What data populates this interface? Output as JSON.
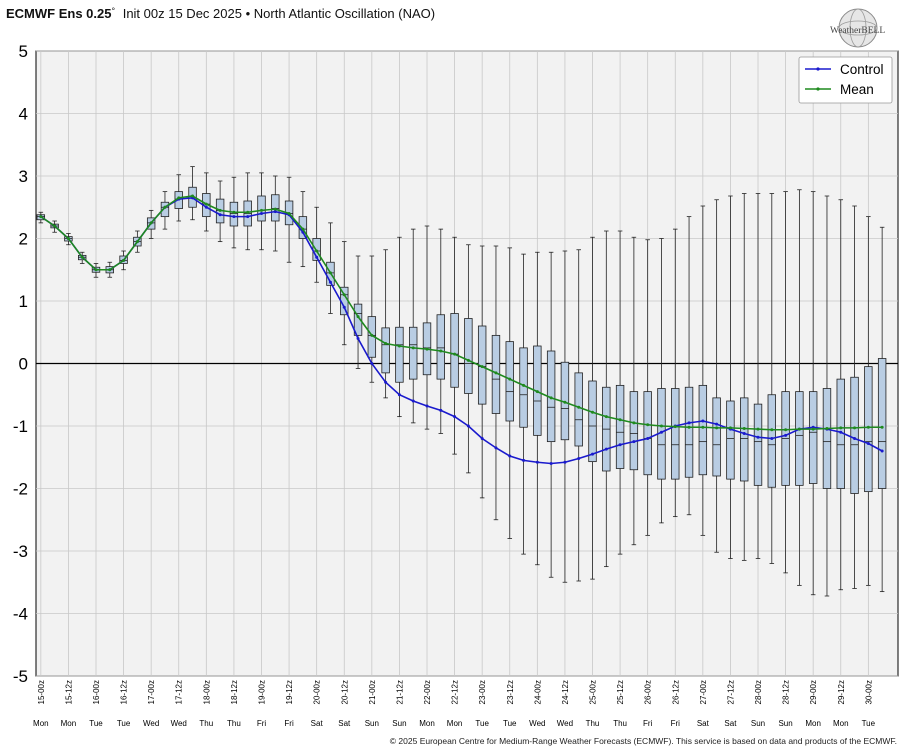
{
  "header": {
    "model": "ECMWF Ens 0.25",
    "degree": "°",
    "init": "Init 00z 15 Dec 2025",
    "bullet": "•",
    "index_name": "North Atlantic Oscillation (NAO)"
  },
  "logo": {
    "text": "WeatherBELL",
    "icon": "globe-logo-icon"
  },
  "copyright": "© 2025 European Centre for Medium-Range Weather Forecasts (ECMWF). This service is based on data and products of the ECMWF.",
  "colors": {
    "control": "#1a1acd",
    "mean": "#1f8a1f",
    "box_fill": "#b9cde3",
    "plot_bg": "#f2f2f2"
  },
  "chart_data": {
    "type": "box",
    "ylim": [
      -5,
      5
    ],
    "yticks": [
      5,
      4,
      3,
      2,
      1,
      0,
      -1,
      -2,
      -3,
      -4,
      -5
    ],
    "grid": true,
    "legend_position": "top-right",
    "time_labels": [
      "15-00z",
      "15-12z",
      "16-00z",
      "16-12z",
      "17-00z",
      "17-12z",
      "18-00z",
      "18-12z",
      "19-00z",
      "19-12z",
      "20-00z",
      "20-12z",
      "21-00z",
      "21-12z",
      "22-00z",
      "22-12z",
      "23-00z",
      "23-12z",
      "24-00z",
      "24-12z",
      "25-00z",
      "25-12z",
      "26-00z",
      "26-12z",
      "27-00z",
      "27-12z",
      "28-00z",
      "28-12z",
      "29-00z",
      "29-12z",
      "30-00z"
    ],
    "day_labels": [
      "Mon",
      "Mon",
      "Tue",
      "Tue",
      "Wed",
      "Wed",
      "Thu",
      "Thu",
      "Fri",
      "Fri",
      "Sat",
      "Sat",
      "Sun",
      "Sun",
      "Mon",
      "Mon",
      "Tue",
      "Tue",
      "Wed",
      "Wed",
      "Thu",
      "Thu",
      "Fri",
      "Fri",
      "Sat",
      "Sat",
      "Sun",
      "Sun",
      "Mon",
      "Mon",
      "Tue"
    ],
    "series": [
      {
        "name": "Control",
        "values": [
          2.35,
          2.2,
          2.0,
          1.7,
          1.5,
          1.5,
          1.65,
          1.95,
          2.25,
          2.5,
          2.63,
          2.65,
          2.5,
          2.38,
          2.35,
          2.35,
          2.4,
          2.43,
          2.38,
          2.1,
          1.7,
          1.3,
          0.9,
          0.4,
          0.0,
          -0.3,
          -0.5,
          -0.6,
          -0.68,
          -0.75,
          -0.85,
          -1.0,
          -1.2,
          -1.35,
          -1.48,
          -1.55,
          -1.58,
          -1.6,
          -1.58,
          -1.52,
          -1.45,
          -1.37,
          -1.3,
          -1.25,
          -1.2,
          -1.1,
          -1.0,
          -0.95,
          -0.92,
          -0.97,
          -1.05,
          -1.12,
          -1.18,
          -1.2,
          -1.15,
          -1.05,
          -1.02,
          -1.05,
          -1.1,
          -1.2,
          -1.28,
          -1.4
        ]
      },
      {
        "name": "Mean",
        "values": [
          2.35,
          2.2,
          2.0,
          1.7,
          1.5,
          1.5,
          1.65,
          1.95,
          2.25,
          2.5,
          2.65,
          2.68,
          2.55,
          2.45,
          2.42,
          2.42,
          2.45,
          2.47,
          2.4,
          2.15,
          1.8,
          1.45,
          1.1,
          0.75,
          0.45,
          0.32,
          0.28,
          0.25,
          0.23,
          0.2,
          0.15,
          0.05,
          -0.05,
          -0.15,
          -0.25,
          -0.35,
          -0.45,
          -0.55,
          -0.62,
          -0.7,
          -0.78,
          -0.85,
          -0.9,
          -0.95,
          -0.98,
          -1.0,
          -1.01,
          -1.02,
          -1.02,
          -1.03,
          -1.03,
          -1.04,
          -1.05,
          -1.06,
          -1.06,
          -1.05,
          -1.05,
          -1.04,
          -1.03,
          -1.03,
          -1.02,
          -1.02
        ]
      }
    ],
    "boxes": [
      {
        "min": 2.25,
        "q1": 2.3,
        "median": 2.35,
        "q3": 2.38,
        "max": 2.42
      },
      {
        "min": 2.1,
        "q1": 2.17,
        "median": 2.2,
        "q3": 2.23,
        "max": 2.28
      },
      {
        "min": 1.9,
        "q1": 1.96,
        "median": 2.0,
        "q3": 2.03,
        "max": 2.08
      },
      {
        "min": 1.6,
        "q1": 1.66,
        "median": 1.7,
        "q3": 1.73,
        "max": 1.78
      },
      {
        "min": 1.38,
        "q1": 1.46,
        "median": 1.5,
        "q3": 1.54,
        "max": 1.6
      },
      {
        "min": 1.38,
        "q1": 1.45,
        "median": 1.5,
        "q3": 1.55,
        "max": 1.62
      },
      {
        "min": 1.5,
        "q1": 1.6,
        "median": 1.65,
        "q3": 1.72,
        "max": 1.8
      },
      {
        "min": 1.78,
        "q1": 1.88,
        "median": 1.95,
        "q3": 2.02,
        "max": 2.12
      },
      {
        "min": 2.0,
        "q1": 2.15,
        "median": 2.25,
        "q3": 2.33,
        "max": 2.45
      },
      {
        "min": 2.15,
        "q1": 2.35,
        "median": 2.5,
        "q3": 2.58,
        "max": 2.75
      },
      {
        "min": 2.28,
        "q1": 2.48,
        "median": 2.63,
        "q3": 2.75,
        "max": 3.02
      },
      {
        "min": 2.3,
        "q1": 2.5,
        "median": 2.65,
        "q3": 2.82,
        "max": 3.15
      },
      {
        "min": 2.12,
        "q1": 2.35,
        "median": 2.55,
        "q3": 2.72,
        "max": 3.05
      },
      {
        "min": 1.95,
        "q1": 2.25,
        "median": 2.45,
        "q3": 2.63,
        "max": 2.92
      },
      {
        "min": 1.85,
        "q1": 2.2,
        "median": 2.4,
        "q3": 2.58,
        "max": 2.98
      },
      {
        "min": 1.82,
        "q1": 2.2,
        "median": 2.4,
        "q3": 2.6,
        "max": 3.05
      },
      {
        "min": 1.82,
        "q1": 2.28,
        "median": 2.45,
        "q3": 2.68,
        "max": 3.05
      },
      {
        "min": 1.8,
        "q1": 2.28,
        "median": 2.48,
        "q3": 2.7,
        "max": 3.0
      },
      {
        "min": 1.62,
        "q1": 2.22,
        "median": 2.4,
        "q3": 2.6,
        "max": 2.98
      },
      {
        "min": 1.55,
        "q1": 2.0,
        "median": 2.15,
        "q3": 2.35,
        "max": 2.75
      },
      {
        "min": 1.3,
        "q1": 1.65,
        "median": 1.8,
        "q3": 2.0,
        "max": 2.5
      },
      {
        "min": 0.8,
        "q1": 1.25,
        "median": 1.45,
        "q3": 1.62,
        "max": 2.25
      },
      {
        "min": 0.3,
        "q1": 0.78,
        "median": 1.1,
        "q3": 1.22,
        "max": 1.95
      },
      {
        "min": -0.08,
        "q1": 0.45,
        "median": 0.8,
        "q3": 0.95,
        "max": 1.72
      },
      {
        "min": -0.3,
        "q1": 0.1,
        "median": 0.45,
        "q3": 0.75,
        "max": 1.72
      },
      {
        "min": -0.55,
        "q1": -0.15,
        "median": 0.3,
        "q3": 0.57,
        "max": 1.82
      },
      {
        "min": -0.85,
        "q1": -0.3,
        "median": 0.3,
        "q3": 0.58,
        "max": 2.02
      },
      {
        "min": -0.95,
        "q1": -0.25,
        "median": 0.3,
        "q3": 0.58,
        "max": 2.15
      },
      {
        "min": -1.05,
        "q1": -0.18,
        "median": 0.25,
        "q3": 0.65,
        "max": 2.2
      },
      {
        "min": -1.12,
        "q1": -0.25,
        "median": 0.25,
        "q3": 0.78,
        "max": 2.15
      },
      {
        "min": -1.45,
        "q1": -0.38,
        "median": 0.15,
        "q3": 0.8,
        "max": 2.02
      },
      {
        "min": -1.75,
        "q1": -0.48,
        "median": 0.0,
        "q3": 0.72,
        "max": 1.9
      },
      {
        "min": -2.15,
        "q1": -0.65,
        "median": -0.05,
        "q3": 0.6,
        "max": 1.88
      },
      {
        "min": -2.5,
        "q1": -0.8,
        "median": -0.25,
        "q3": 0.45,
        "max": 1.88
      },
      {
        "min": -2.8,
        "q1": -0.92,
        "median": -0.45,
        "q3": 0.35,
        "max": 1.85
      },
      {
        "min": -3.05,
        "q1": -1.02,
        "median": -0.5,
        "q3": 0.25,
        "max": 1.75
      },
      {
        "min": -3.22,
        "q1": -1.15,
        "median": -0.6,
        "q3": 0.28,
        "max": 1.78
      },
      {
        "min": -3.42,
        "q1": -1.25,
        "median": -0.7,
        "q3": 0.2,
        "max": 1.78
      },
      {
        "min": -3.5,
        "q1": -1.22,
        "median": -0.72,
        "q3": 0.02,
        "max": 1.8
      },
      {
        "min": -3.48,
        "q1": -1.32,
        "median": -0.9,
        "q3": -0.15,
        "max": 1.82
      },
      {
        "min": -3.45,
        "q1": -1.57,
        "median": -1.0,
        "q3": -0.28,
        "max": 2.02
      },
      {
        "min": -3.25,
        "q1": -1.72,
        "median": -1.05,
        "q3": -0.38,
        "max": 2.12
      },
      {
        "min": -3.05,
        "q1": -1.68,
        "median": -1.1,
        "q3": -0.35,
        "max": 2.12
      },
      {
        "min": -2.9,
        "q1": -1.7,
        "median": -1.12,
        "q3": -0.45,
        "max": 2.02
      },
      {
        "min": -2.75,
        "q1": -1.78,
        "median": -1.2,
        "q3": -0.45,
        "max": 1.98
      },
      {
        "min": -2.55,
        "q1": -1.85,
        "median": -1.3,
        "q3": -0.4,
        "max": 2.0
      },
      {
        "min": -2.45,
        "q1": -1.85,
        "median": -1.3,
        "q3": -0.4,
        "max": 2.15
      },
      {
        "min": -2.42,
        "q1": -1.82,
        "median": -1.3,
        "q3": -0.38,
        "max": 2.35
      },
      {
        "min": -2.75,
        "q1": -1.78,
        "median": -1.25,
        "q3": -0.35,
        "max": 2.52
      },
      {
        "min": -3.02,
        "q1": -1.8,
        "median": -1.3,
        "q3": -0.55,
        "max": 2.62
      },
      {
        "min": -3.12,
        "q1": -1.85,
        "median": -1.2,
        "q3": -0.6,
        "max": 2.68
      },
      {
        "min": -3.15,
        "q1": -1.88,
        "median": -1.2,
        "q3": -0.55,
        "max": 2.72
      },
      {
        "min": -3.12,
        "q1": -1.95,
        "median": -1.25,
        "q3": -0.65,
        "max": 2.72
      },
      {
        "min": -3.2,
        "q1": -1.98,
        "median": -1.3,
        "q3": -0.5,
        "max": 2.72
      },
      {
        "min": -3.35,
        "q1": -1.95,
        "median": -1.2,
        "q3": -0.45,
        "max": 2.75
      },
      {
        "min": -3.55,
        "q1": -1.95,
        "median": -1.15,
        "q3": -0.45,
        "max": 2.78
      },
      {
        "min": -3.7,
        "q1": -1.92,
        "median": -1.1,
        "q3": -0.45,
        "max": 2.75
      },
      {
        "min": -3.72,
        "q1": -2.0,
        "median": -1.25,
        "q3": -0.4,
        "max": 2.68
      },
      {
        "min": -3.62,
        "q1": -2.0,
        "median": -1.3,
        "q3": -0.25,
        "max": 2.62
      },
      {
        "min": -3.6,
        "q1": -2.08,
        "median": -1.3,
        "q3": -0.22,
        "max": 2.52
      },
      {
        "min": -3.55,
        "q1": -2.05,
        "median": -1.25,
        "q3": -0.05,
        "max": 2.35
      },
      {
        "min": -3.65,
        "q1": -2.0,
        "median": -1.25,
        "q3": 0.08,
        "max": 2.18
      }
    ]
  }
}
